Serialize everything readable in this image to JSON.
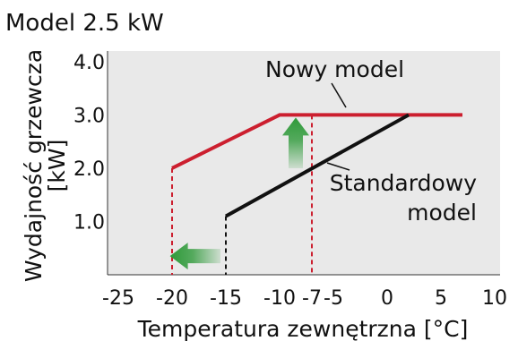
{
  "chart_data": {
    "type": "line",
    "title": "Model 2.5 kW",
    "xlabel": "Temperatura zewnętrzna [°C]",
    "ylabel_line1": "Wydajność grzewcza",
    "ylabel_line2": "[kW]",
    "xlim": [
      -26,
      10.5
    ],
    "ylim": [
      0,
      4.2
    ],
    "x_ticks": [
      {
        "value": -25,
        "label": "-25"
      },
      {
        "value": -20,
        "label": "-20"
      },
      {
        "value": -15,
        "label": "-15"
      },
      {
        "value": -10,
        "label": "-10"
      },
      {
        "value": -7,
        "label": "-7",
        "color": "#cc1f2f"
      },
      {
        "value": -5,
        "label": "-5"
      },
      {
        "value": 0,
        "label": "0"
      },
      {
        "value": 5,
        "label": "5"
      },
      {
        "value": 10,
        "label": "10"
      }
    ],
    "y_ticks": [
      {
        "value": 1,
        "label": "1.0"
      },
      {
        "value": 2,
        "label": "2.0"
      },
      {
        "value": 3,
        "label": "3.0"
      },
      {
        "value": 4,
        "label": "4.0"
      }
    ],
    "grid": false,
    "plot_background": "#e9e9e9",
    "series": [
      {
        "name": "Nowy model",
        "color": "#cc1f2f",
        "points": [
          [
            -20,
            2.0
          ],
          [
            -10,
            3.0
          ],
          [
            7,
            3.0
          ]
        ],
        "drop_lines": [
          [
            -20,
            2.0
          ],
          [
            -7,
            3.0
          ]
        ]
      },
      {
        "name": "Standardowy model",
        "color": "#111111",
        "points": [
          [
            -15,
            1.1
          ],
          [
            2,
            3.0
          ]
        ],
        "drop_lines": [
          [
            -15,
            1.1
          ]
        ]
      }
    ],
    "annotations": [
      {
        "series": "Nowy model",
        "lines": [
          "Nowy model"
        ],
        "color": "#cc1f2f"
      },
      {
        "series": "Standardowy model",
        "lines": [
          "Standardowy",
          "model"
        ],
        "color": "#111111"
      }
    ],
    "arrows": [
      {
        "direction": "up",
        "color": "#2f9a3a",
        "from": [
          -8.5,
          2.0
        ],
        "to": [
          -8.5,
          2.95
        ]
      },
      {
        "direction": "left",
        "color": "#2f9a3a",
        "from": [
          -15.5,
          0.35
        ],
        "to": [
          -20.2,
          0.35
        ]
      }
    ]
  }
}
